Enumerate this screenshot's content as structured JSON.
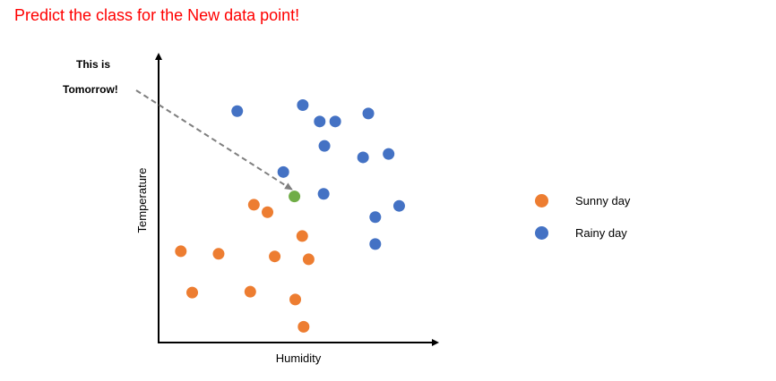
{
  "heading": "Predict the class for the New data point!",
  "annotation": {
    "line1": "This is",
    "line2": "Tomorrow!"
  },
  "colors": {
    "sunny": "#ed7d31",
    "rainy": "#4472c4",
    "new": "#70ad47",
    "arrow": "#7f7f7f",
    "heading": "#ff0000"
  },
  "chart_data": {
    "type": "scatter",
    "xlabel": "Humidity",
    "ylabel": "Temperature",
    "xlim": [
      0,
      10
    ],
    "ylim": [
      0,
      10
    ],
    "grid": false,
    "legend": "right",
    "ticks_shown": false,
    "series": [
      {
        "name": "Sunny day",
        "color": "#ed7d31",
        "points": [
          {
            "x": 3.43,
            "y": 4.8
          },
          {
            "x": 3.92,
            "y": 4.54
          },
          {
            "x": 0.8,
            "y": 3.18
          },
          {
            "x": 2.16,
            "y": 3.09
          },
          {
            "x": 4.18,
            "y": 3.0
          },
          {
            "x": 5.17,
            "y": 3.71
          },
          {
            "x": 5.4,
            "y": 2.9
          },
          {
            "x": 1.21,
            "y": 1.74
          },
          {
            "x": 3.3,
            "y": 1.77
          },
          {
            "x": 4.92,
            "y": 1.5
          },
          {
            "x": 5.22,
            "y": 0.55
          }
        ]
      },
      {
        "name": "Rainy day",
        "color": "#4472c4",
        "points": [
          {
            "x": 2.83,
            "y": 8.06
          },
          {
            "x": 5.19,
            "y": 8.27
          },
          {
            "x": 5.8,
            "y": 7.7
          },
          {
            "x": 6.36,
            "y": 7.7
          },
          {
            "x": 7.55,
            "y": 7.98
          },
          {
            "x": 5.97,
            "y": 6.85
          },
          {
            "x": 7.36,
            "y": 6.45
          },
          {
            "x": 8.28,
            "y": 6.57
          },
          {
            "x": 4.49,
            "y": 5.94
          },
          {
            "x": 5.94,
            "y": 5.18
          },
          {
            "x": 8.66,
            "y": 4.76
          },
          {
            "x": 7.8,
            "y": 4.37
          },
          {
            "x": 7.8,
            "y": 3.43
          }
        ]
      },
      {
        "color": "#70ad47",
        "points": [
          {
            "x": 4.89,
            "y": 5.09
          }
        ]
      }
    ]
  }
}
